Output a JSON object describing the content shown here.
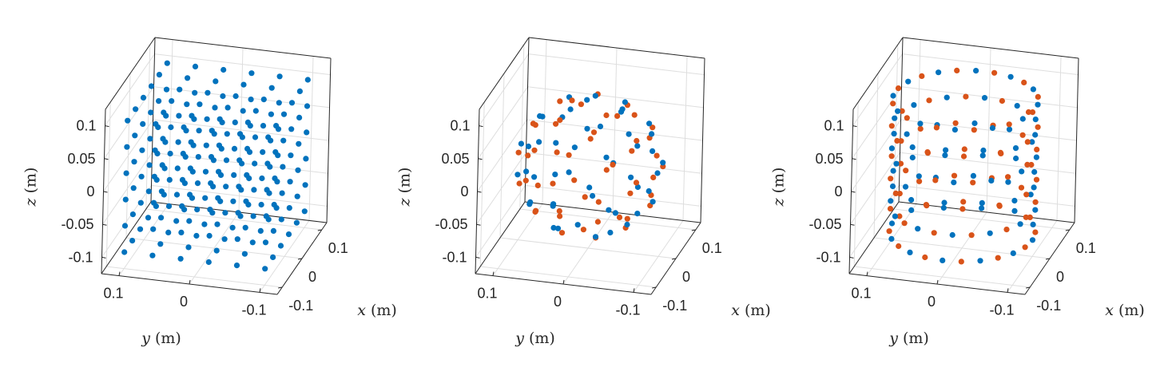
{
  "chart_data": [
    {
      "type": "scatter",
      "dims": 3,
      "title": "",
      "xlabel": {
        "var": "x",
        "unit": " (m)"
      },
      "ylabel": {
        "var": "y",
        "unit": " (m)"
      },
      "zlabel": {
        "var": "z",
        "unit": " (m)"
      },
      "xlim": [
        -0.125,
        0.125
      ],
      "ylim": [
        -0.125,
        0.125
      ],
      "zlim": [
        -0.125,
        0.125
      ],
      "xticks": [
        {
          "v": 0.1,
          "label": "0.1"
        },
        {
          "v": 0,
          "label": "0"
        },
        {
          "v": -0.1,
          "label": "-0.1"
        }
      ],
      "yticks": [
        {
          "v": 0.1,
          "label": "0.1"
        },
        {
          "v": 0,
          "label": "0"
        },
        {
          "v": -0.1,
          "label": "-0.1"
        }
      ],
      "zticks": [
        {
          "v": 0.1,
          "label": "0.1"
        },
        {
          "v": 0.05,
          "label": "0.05"
        },
        {
          "v": 0,
          "label": "0"
        },
        {
          "v": -0.05,
          "label": "-0.05"
        },
        {
          "v": -0.1,
          "label": "-0.1"
        }
      ],
      "grid": true,
      "series": [
        {
          "color": "#0072BD",
          "shape": "cube",
          "grid_n": 6,
          "extent": [
            -0.1,
            0.1
          ]
        }
      ]
    },
    {
      "type": "scatter",
      "dims": 3,
      "title": "",
      "xlabel": {
        "var": "x",
        "unit": " (m)"
      },
      "ylabel": {
        "var": "y",
        "unit": " (m)"
      },
      "zlabel": {
        "var": "z",
        "unit": " (m)"
      },
      "xlim": [
        -0.125,
        0.125
      ],
      "ylim": [
        -0.125,
        0.125
      ],
      "zlim": [
        -0.125,
        0.125
      ],
      "xticks": [
        {
          "v": 0.1,
          "label": "0.1"
        },
        {
          "v": 0,
          "label": "0"
        },
        {
          "v": -0.1,
          "label": "-0.1"
        }
      ],
      "yticks": [
        {
          "v": 0.1,
          "label": "0.1"
        },
        {
          "v": 0,
          "label": "0"
        },
        {
          "v": -0.1,
          "label": "-0.1"
        }
      ],
      "zticks": [
        {
          "v": 0.1,
          "label": "0.1"
        },
        {
          "v": 0.05,
          "label": "0.05"
        },
        {
          "v": 0,
          "label": "0"
        },
        {
          "v": -0.05,
          "label": "-0.05"
        },
        {
          "v": -0.1,
          "label": "-0.1"
        }
      ],
      "grid": true,
      "series": [
        {
          "color": "#0072BD",
          "shape": "sphere",
          "radius": 0.1,
          "n": 50,
          "phase": 0
        },
        {
          "color": "#D95319",
          "shape": "sphere",
          "radius": 0.1,
          "n": 50,
          "phase": 0.5
        }
      ]
    },
    {
      "type": "scatter",
      "dims": 3,
      "title": "",
      "xlabel": {
        "var": "x",
        "unit": " (m)"
      },
      "ylabel": {
        "var": "y",
        "unit": " (m)"
      },
      "zlabel": {
        "var": "z",
        "unit": " (m)"
      },
      "xlim": [
        -0.125,
        0.125
      ],
      "ylim": [
        -0.125,
        0.125
      ],
      "zlim": [
        -0.125,
        0.125
      ],
      "xticks": [
        {
          "v": 0.1,
          "label": "0.1"
        },
        {
          "v": 0,
          "label": "0"
        },
        {
          "v": -0.1,
          "label": "-0.1"
        }
      ],
      "yticks": [
        {
          "v": 0.1,
          "label": "0.1"
        },
        {
          "v": 0,
          "label": "0"
        },
        {
          "v": -0.1,
          "label": "-0.1"
        }
      ],
      "zticks": [
        {
          "v": 0.1,
          "label": "0.1"
        },
        {
          "v": 0.05,
          "label": "0.05"
        },
        {
          "v": 0,
          "label": "0"
        },
        {
          "v": -0.05,
          "label": "-0.05"
        },
        {
          "v": -0.1,
          "label": "-0.1"
        }
      ],
      "grid": true,
      "series": [
        {
          "color": "#0072BD",
          "shape": "cylinder",
          "radius": 0.1,
          "half_height": 0.1,
          "n_theta": 12,
          "n_z": 6,
          "phase": 0
        },
        {
          "color": "#D95319",
          "shape": "cylinder",
          "radius": 0.1,
          "half_height": 0.1,
          "n_theta": 12,
          "n_z": 6,
          "phase": 0.5
        }
      ]
    }
  ]
}
